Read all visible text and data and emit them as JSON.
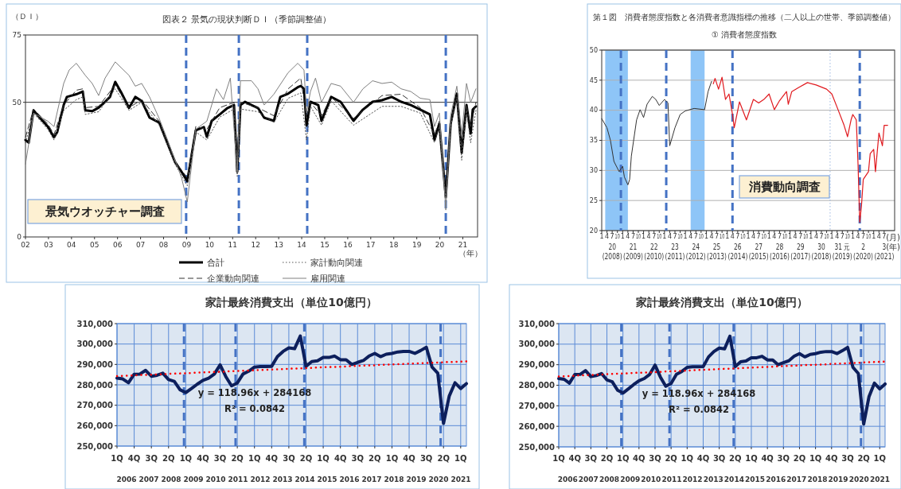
{
  "chart_data": [
    {
      "type": "line",
      "title": "図表２ 景気の現状判断ＤＩ（季節調整値）",
      "ylabel": "（ＤＩ）",
      "xlabel": "（年）",
      "xlim": [
        2002,
        2021.64
      ],
      "ylim": [
        0,
        75
      ],
      "yticks": [
        0,
        50,
        75
      ],
      "xticks": [
        {
          "value": 2002,
          "label": "02"
        },
        {
          "value": 2003,
          "label": "03"
        },
        {
          "value": 2004,
          "label": "04"
        },
        {
          "value": 2005,
          "label": "05"
        },
        {
          "value": 2006,
          "label": "06"
        },
        {
          "value": 2007,
          "label": "07"
        },
        {
          "value": 2008,
          "label": "08"
        },
        {
          "value": 2009,
          "label": "09"
        },
        {
          "value": 2010,
          "label": "10"
        },
        {
          "value": 2011,
          "label": "11"
        },
        {
          "value": 2012,
          "label": "12"
        },
        {
          "value": 2013,
          "label": "13"
        },
        {
          "value": 2014,
          "label": "14"
        },
        {
          "value": 2015,
          "label": "15"
        },
        {
          "value": 2016,
          "label": "16"
        },
        {
          "value": 2017,
          "label": "17"
        },
        {
          "value": 2018,
          "label": "18"
        },
        {
          "value": 2019,
          "label": "19"
        },
        {
          "value": 2020,
          "label": "20"
        },
        {
          "value": 2021,
          "label": "21"
        }
      ],
      "grid": false,
      "legend": "bottom",
      "ref_lines": [
        {
          "axis": "y",
          "value": 50,
          "color": "#333333",
          "line_style": "solid"
        },
        {
          "axis": "x",
          "value": 2008.98,
          "color": "#4472c4",
          "line_style": "dashed"
        },
        {
          "axis": "x",
          "value": 2011.27,
          "color": "#4472c4",
          "line_style": "dashed"
        },
        {
          "axis": "x",
          "value": 2014.24,
          "color": "#4472c4",
          "line_style": "dashed"
        },
        {
          "axis": "x",
          "value": 2020.26,
          "color": "#4472c4",
          "line_style": "dashed"
        }
      ],
      "annotations": [
        "景気ウオッチャー調査"
      ],
      "series": [
        {
          "name": "合計",
          "color": "#000000",
          "line_style": "solid",
          "x": [
            2002.0,
            2002.14,
            2002.35,
            2002.5,
            2002.97,
            2003.24,
            2003.38,
            2003.66,
            2003.8,
            2004.21,
            2004.49,
            2004.6,
            2004.9,
            2005.18,
            2005.46,
            2005.67,
            2005.9,
            2006.15,
            2006.5,
            2006.77,
            2007.05,
            2007.39,
            2007.81,
            2008.22,
            2008.5,
            2008.78,
            2009.03,
            2009.19,
            2009.4,
            2009.75,
            2009.88,
            2010.09,
            2010.44,
            2010.78,
            2011.06,
            2011.2,
            2011.34,
            2011.54,
            2011.82,
            2012.1,
            2012.37,
            2012.79,
            2013.07,
            2013.41,
            2013.83,
            2013.96,
            2014.1,
            2014.21,
            2014.38,
            2014.72,
            2014.86,
            2015.28,
            2015.69,
            2015.97,
            2016.25,
            2016.66,
            2017.08,
            2017.49,
            2017.91,
            2018.32,
            2018.74,
            2019.15,
            2019.57,
            2019.77,
            2019.98,
            2020.26,
            2020.47,
            2020.74,
            2020.95,
            2021.16,
            2021.34,
            2021.43,
            2021.57
          ],
          "values": [
            36,
            35,
            47,
            45.5,
            41,
            37,
            39,
            49,
            52,
            53,
            54,
            47,
            46.7,
            48,
            50.2,
            52,
            57.6,
            53.8,
            47.9,
            52,
            50.5,
            44.3,
            42.5,
            33.7,
            27.8,
            24.2,
            20.7,
            29,
            39.6,
            40.8,
            37.2,
            43.1,
            45.5,
            47.9,
            49,
            24.2,
            49,
            50.2,
            49,
            47.9,
            44.3,
            43.1,
            52,
            53.2,
            55.6,
            56.1,
            55,
            41.4,
            50.2,
            49,
            43.1,
            52,
            50.2,
            46.7,
            43.1,
            47.3,
            50.2,
            50.8,
            52,
            50.2,
            49,
            47.3,
            45.5,
            36.1,
            42,
            14.8,
            42,
            53.2,
            31.3,
            49,
            38.4,
            47.3,
            48.5
          ]
        },
        {
          "name": "家計動向関連",
          "color": "#555555",
          "line_style": "dotted",
          "x": [
            2002.0,
            2002.35,
            2002.97,
            2003.24,
            2003.66,
            2004.21,
            2004.49,
            2004.6,
            2005.18,
            2005.9,
            2006.5,
            2007.05,
            2007.81,
            2008.5,
            2009.03,
            2009.4,
            2009.88,
            2010.44,
            2011.06,
            2011.2,
            2011.34,
            2012.1,
            2012.79,
            2013.41,
            2013.96,
            2014.21,
            2014.38,
            2014.86,
            2015.28,
            2016.25,
            2017.49,
            2018.32,
            2019.15,
            2019.77,
            2019.98,
            2020.26,
            2020.47,
            2020.74,
            2020.95,
            2021.16,
            2021.34,
            2021.57
          ],
          "values": [
            35,
            46,
            40,
            36,
            47,
            51,
            52,
            45.5,
            46.5,
            55,
            47,
            50,
            41.5,
            27,
            19,
            39,
            36,
            44.5,
            47.5,
            22.5,
            47.5,
            46.5,
            42.5,
            51.5,
            53.5,
            36,
            48.5,
            41.5,
            50.5,
            41.5,
            48.5,
            48.5,
            46,
            35,
            41,
            13.5,
            41,
            52,
            28.5,
            47,
            35,
            47
          ]
        },
        {
          "name": "企業動向関連",
          "color": "#333333",
          "line_style": "dashed",
          "x": [
            2002.0,
            2002.35,
            2002.97,
            2003.24,
            2003.66,
            2004.21,
            2004.49,
            2004.6,
            2005.18,
            2005.9,
            2006.5,
            2007.05,
            2007.81,
            2008.5,
            2009.03,
            2009.4,
            2009.88,
            2010.44,
            2011.06,
            2011.2,
            2011.34,
            2012.1,
            2012.79,
            2013.41,
            2013.96,
            2014.21,
            2014.38,
            2014.86,
            2015.28,
            2016.25,
            2017.49,
            2018.32,
            2019.15,
            2019.77,
            2019.98,
            2020.26,
            2020.47,
            2020.74,
            2020.95,
            2021.16,
            2021.34,
            2021.57
          ],
          "values": [
            37,
            47.5,
            42,
            38,
            49,
            54.5,
            55,
            48,
            48.5,
            56.5,
            48,
            51,
            43,
            28,
            22,
            41,
            40,
            48,
            50,
            26,
            50,
            48,
            45,
            55,
            59,
            44,
            50,
            45,
            52,
            44,
            52.5,
            53,
            48,
            38,
            43,
            16,
            43,
            52,
            33,
            49,
            41,
            50
          ]
        },
        {
          "name": "雇用関連",
          "color": "#808080",
          "line_style": "solid",
          "x": [
            2002.0,
            2002.35,
            2002.97,
            2003.24,
            2003.66,
            2003.9,
            2004.21,
            2004.6,
            2004.9,
            2005.18,
            2005.46,
            2005.9,
            2006.5,
            2006.77,
            2007.05,
            2007.39,
            2007.81,
            2008.22,
            2008.78,
            2009.03,
            2009.4,
            2009.88,
            2010.3,
            2010.6,
            2010.9,
            2011.2,
            2011.34,
            2011.82,
            2012.1,
            2012.37,
            2012.79,
            2013.41,
            2013.83,
            2014.1,
            2014.21,
            2014.38,
            2014.6,
            2014.86,
            2015.28,
            2015.69,
            2016.25,
            2016.66,
            2017.08,
            2017.49,
            2017.91,
            2018.32,
            2018.74,
            2019.15,
            2019.57,
            2019.77,
            2019.98,
            2020.26,
            2020.47,
            2020.74,
            2020.95,
            2021.16,
            2021.34,
            2021.57
          ],
          "values": [
            27,
            46,
            43,
            41,
            57,
            62,
            64.5,
            60,
            57,
            52.5,
            59,
            65,
            60,
            56,
            57,
            52,
            44,
            35,
            22,
            13,
            40,
            43,
            55,
            51,
            59,
            24,
            58,
            58,
            55,
            49,
            53,
            61,
            64.5,
            62,
            46,
            54,
            59,
            50,
            57,
            56,
            50,
            55,
            58,
            57,
            57.5,
            55,
            54,
            51.5,
            51,
            41,
            46,
            10,
            45,
            56,
            38,
            57,
            50,
            55
          ]
        }
      ]
    },
    {
      "type": "line",
      "title": "第１図　消費者態度指数と各消費者意識指標の推移（二人以上の世帯、季節調整値）",
      "subtitle": "① 消費者態度指数",
      "xlabel": "(月)\n(年)",
      "xlim": [
        "2008-01",
        "2022-01"
      ],
      "ylim": [
        20,
        50
      ],
      "yticks": [
        20,
        25,
        30,
        35,
        40,
        45,
        50
      ],
      "xticks": [
        {
          "value": "2008-01",
          "label": "1"
        },
        {
          "value": "2008-04",
          "label": "4"
        },
        {
          "value": "2008-07",
          "label": "7"
        },
        {
          "value": "2008-10",
          "label": "10"
        },
        {
          "value": "2009-01",
          "label": "1"
        },
        {
          "value": "2009-04",
          "label": "4"
        },
        {
          "value": "2009-07",
          "label": "7"
        },
        {
          "value": "2009-10",
          "label": "10"
        },
        {
          "value": "2010-01",
          "label": "1"
        },
        {
          "value": "2010-04",
          "label": "4"
        },
        {
          "value": "2010-07",
          "label": "7"
        },
        {
          "value": "2010-10",
          "label": "10"
        },
        {
          "value": "2011-01",
          "label": "1"
        },
        {
          "value": "2011-04",
          "label": "4"
        },
        {
          "value": "2011-07",
          "label": "7"
        },
        {
          "value": "2011-10",
          "label": "10"
        },
        {
          "value": "2012-01",
          "label": "1"
        },
        {
          "value": "2012-04",
          "label": "4"
        },
        {
          "value": "2012-07",
          "label": "7"
        },
        {
          "value": "2012-10",
          "label": "10"
        },
        {
          "value": "2013-01",
          "label": "1"
        },
        {
          "value": "2013-04",
          "label": "4"
        },
        {
          "value": "2013-07",
          "label": "7"
        },
        {
          "value": "2013-10",
          "label": "10"
        },
        {
          "value": "2014-01",
          "label": "1"
        },
        {
          "value": "2014-04",
          "label": "4"
        },
        {
          "value": "2014-07",
          "label": "7"
        },
        {
          "value": "2014-10",
          "label": "10"
        },
        {
          "value": "2015-01",
          "label": "1"
        },
        {
          "value": "2015-04",
          "label": "4"
        },
        {
          "value": "2015-07",
          "label": "7"
        },
        {
          "value": "2015-10",
          "label": "10"
        },
        {
          "value": "2016-01",
          "label": "1"
        },
        {
          "value": "2016-04",
          "label": "4"
        },
        {
          "value": "2016-07",
          "label": "7"
        },
        {
          "value": "2016-10",
          "label": "10"
        },
        {
          "value": "2017-01",
          "label": "1"
        },
        {
          "value": "2017-04",
          "label": "4"
        },
        {
          "value": "2017-07",
          "label": "7"
        },
        {
          "value": "2017-10",
          "label": "10"
        },
        {
          "value": "2018-01",
          "label": "1"
        },
        {
          "value": "2018-04",
          "label": "4"
        },
        {
          "value": "2018-07",
          "label": "7"
        },
        {
          "value": "2018-10",
          "label": "10"
        },
        {
          "value": "2019-01",
          "label": "1"
        },
        {
          "value": "2019-04",
          "label": "4"
        },
        {
          "value": "2019-07",
          "label": "7"
        },
        {
          "value": "2019-10",
          "label": "10"
        },
        {
          "value": "2020-01",
          "label": "1"
        },
        {
          "value": "2020-04",
          "label": "4"
        },
        {
          "value": "2020-07",
          "label": "7"
        },
        {
          "value": "2020-10",
          "label": "10"
        },
        {
          "value": "2021-01",
          "label": "1"
        },
        {
          "value": "2021-04",
          "label": "4"
        },
        {
          "value": "2021-07",
          "label": "7"
        }
      ],
      "x2lim": [
        "2008-01",
        "2022-01"
      ],
      "x2ticks": [
        {
          "value": "2008-07",
          "label": "20\n(2008)"
        },
        {
          "value": "2009-07",
          "label": "21\n(2009)"
        },
        {
          "value": "2010-07",
          "label": "22\n(2010)"
        },
        {
          "value": "2011-07",
          "label": "23\n(2011)"
        },
        {
          "value": "2012-07",
          "label": "24\n(2012)"
        },
        {
          "value": "2013-07",
          "label": "25\n(2013)"
        },
        {
          "value": "2014-07",
          "label": "26\n(2014)"
        },
        {
          "value": "2015-07",
          "label": "27\n(2015)"
        },
        {
          "value": "2016-07",
          "label": "28\n(2016)"
        },
        {
          "value": "2017-07",
          "label": "29\n(2017)"
        },
        {
          "value": "2018-07",
          "label": "30\n(2018)"
        },
        {
          "value": "2019-07",
          "label": "31 元\n(2019)"
        },
        {
          "value": "2020-07",
          "label": "2\n(2020)"
        },
        {
          "value": "2021-07",
          "label": "3\n(2021)"
        }
      ],
      "grid": "y",
      "bands": [
        {
          "axis": "x",
          "from": "2008-03",
          "to": "2009-04",
          "color": "#8ec5f7"
        },
        {
          "axis": "x",
          "from": "2012-04",
          "to": "2012-12",
          "color": "#8ec5f7"
        }
      ],
      "ref_lines": [
        {
          "axis": "x",
          "value": "2018-12",
          "color": "#9bb7e0",
          "line_style": "dotted"
        },
        {
          "axis": "x",
          "value": "2008-12",
          "color": "#4472c4",
          "line_style": "dashed"
        },
        {
          "axis": "x",
          "value": "2011-02",
          "color": "#4472c4",
          "line_style": "dashed"
        },
        {
          "axis": "x",
          "value": "2014-04",
          "color": "#4472c4",
          "line_style": "dashed"
        },
        {
          "axis": "x",
          "value": "2020-05",
          "color": "#4472c4",
          "line_style": "dashed"
        }
      ],
      "annotations": [
        "消費動向調査"
      ],
      "series": [
        {
          "color": "#333333",
          "x": [
            "2008-01",
            "2008-04",
            "2008-06",
            "2008-08",
            "2008-11",
            "2009-01",
            "2009-02",
            "2009-04",
            "2009-05",
            "2009-06",
            "2009-09",
            "2009-11",
            "2010-01",
            "2010-03",
            "2010-06",
            "2010-08",
            "2010-10",
            "2011-01",
            "2011-03",
            "2011-04",
            "2011-07",
            "2011-10",
            "2012-01",
            "2012-06",
            "2012-12",
            "2013-02",
            "2013-04"
          ],
          "values": [
            38.6,
            37.1,
            35.0,
            31.5,
            29.8,
            30.7,
            28.9,
            27.6,
            28.5,
            32.4,
            38.4,
            40.1,
            38.8,
            41.0,
            42.3,
            41.8,
            40.8,
            41.8,
            41.2,
            34.1,
            37.1,
            39.3,
            39.9,
            40.3,
            40.1,
            43.1,
            44.8
          ]
        },
        {
          "color": "#e0191e",
          "x": [
            "2013-05",
            "2013-06",
            "2013-08",
            "2013-10",
            "2013-12",
            "2014-02",
            "2014-04",
            "2014-05",
            "2014-08",
            "2014-12",
            "2015-04",
            "2015-07",
            "2015-10",
            "2016-01",
            "2016-04",
            "2016-07",
            "2016-11",
            "2016-12",
            "2017-02",
            "2017-06",
            "2017-11",
            "2018-04",
            "2018-10",
            "2019-01",
            "2019-04",
            "2019-08",
            "2019-10",
            "2019-12",
            "2020-01",
            "2020-03",
            "2020-04",
            "2020-05",
            "2020-06",
            "2020-07",
            "2020-10",
            "2020-11",
            "2021-01",
            "2021-02",
            "2021-04",
            "2021-06",
            "2021-07",
            "2021-09"
          ],
          "values": [
            44.4,
            45.3,
            43.5,
            45.5,
            41.8,
            42.7,
            39.3,
            37.1,
            41.4,
            38.4,
            41.8,
            41.2,
            41.8,
            42.7,
            40.1,
            41.6,
            43.1,
            41.0,
            43.1,
            43.8,
            44.6,
            44.2,
            43.5,
            42.7,
            40.5,
            37.5,
            35.6,
            38.4,
            39.3,
            38.4,
            31.1,
            21.4,
            24.2,
            28.5,
            29.8,
            32.8,
            33.5,
            29.8,
            36.2,
            34.1,
            37.5,
            37.5
          ]
        }
      ]
    },
    {
      "type": "line",
      "title": "家計最終消費支出（単位10億円）",
      "ylim": [
        250000,
        310000
      ],
      "categories": [
        "1Q",
        null,
        null,
        "4Q",
        null,
        null,
        "3Q",
        null,
        null,
        "2Q",
        null,
        null,
        "1Q",
        null,
        null,
        "4Q",
        null,
        null,
        "3Q",
        null,
        null,
        "2Q",
        null,
        null,
        "1Q",
        null,
        null,
        "4Q",
        null,
        null,
        "3Q",
        null,
        null,
        "2Q",
        null,
        null,
        "1Q",
        null,
        null,
        "4Q",
        null,
        null,
        "3Q",
        null,
        null,
        "2Q",
        null,
        null,
        "1Q",
        null,
        null,
        "4Q",
        null,
        null,
        "3Q",
        null,
        null,
        "2Q",
        null,
        null,
        "1Q",
        null
      ],
      "yticks": [
        {
          "value": 250000,
          "label": "250,000"
        },
        {
          "value": 260000,
          "label": "260,000"
        },
        {
          "value": 270000,
          "label": "270,000"
        },
        {
          "value": 280000,
          "label": "280,000"
        },
        {
          "value": 290000,
          "label": "290,000"
        },
        {
          "value": 300000,
          "label": "300,000"
        },
        {
          "value": 310000,
          "label": "310,000"
        }
      ],
      "grid": true,
      "annotations": [
        "y = 118.96x + 284168",
        "R² = 0.0842",
        "2006",
        "2007",
        "2008",
        "2009",
        "2010",
        "2011",
        "2012",
        "2013",
        "2014",
        "2015",
        "2016",
        "2017",
        "2018",
        "2019",
        "2020",
        "2021"
      ],
      "series": [
        {
          "color": "#0d1f5c",
          "line_style": "solid",
          "values": [
            283300,
            282900,
            281000,
            285200,
            285300,
            287100,
            284200,
            284700,
            285700,
            282600,
            281700,
            277600,
            276200,
            278200,
            280300,
            282200,
            283300,
            285300,
            289800,
            284000,
            279500,
            280900,
            285300,
            286700,
            288700,
            289000,
            289000,
            289100,
            293800,
            296400,
            298100,
            297700,
            303900,
            289100,
            291400,
            291800,
            293400,
            293400,
            294100,
            292300,
            292300,
            290000,
            291000,
            291900,
            294100,
            295400,
            293800,
            295000,
            295400,
            296100,
            296400,
            296400,
            295400,
            296800,
            298400,
            288700,
            285700,
            261100,
            274500,
            281000,
            278200,
            280600
          ]
        },
        {
          "type": "line",
          "color": "#ff0000",
          "line_style": "dotted",
          "values": [
            284300,
            284400,
            284500,
            284600,
            284800,
            284900,
            285000,
            285100,
            285200,
            285400,
            285500,
            285600,
            285700,
            285800,
            286000,
            286100,
            286200,
            286300,
            286400,
            286500,
            286700,
            286800,
            286900,
            287000,
            287100,
            287300,
            287400,
            287500,
            287600,
            287700,
            287900,
            288000,
            288100,
            288200,
            288300,
            288500,
            288600,
            288700,
            288800,
            288900,
            289000,
            289200,
            289300,
            289400,
            289500,
            289600,
            289800,
            289900,
            290000,
            290100,
            290200,
            290400,
            290500,
            290600,
            290700,
            290800,
            290900,
            291100,
            291200,
            291300,
            291400,
            291500
          ]
        }
      ]
    },
    {
      "type": "line",
      "title": "家計最終消費支出（単位10億円）",
      "ylim": [
        250000,
        310000
      ],
      "categories": [
        "1Q",
        null,
        null,
        "4Q",
        null,
        null,
        "3Q",
        null,
        null,
        "2Q",
        null,
        null,
        "1Q",
        null,
        null,
        "4Q",
        null,
        null,
        "3Q",
        null,
        null,
        "2Q",
        null,
        null,
        "1Q",
        null,
        null,
        "4Q",
        null,
        null,
        "3Q",
        null,
        null,
        "2Q",
        null,
        null,
        "1Q",
        null,
        null,
        "4Q",
        null,
        null,
        "3Q",
        null,
        null,
        "2Q",
        null,
        null,
        "1Q",
        null,
        null,
        "4Q",
        null,
        null,
        "3Q",
        null,
        null,
        "2Q",
        null,
        null,
        "1Q",
        null
      ],
      "yticks": [
        {
          "value": 250000,
          "label": "250,000"
        },
        {
          "value": 260000,
          "label": "260,000"
        },
        {
          "value": 270000,
          "label": "270,000"
        },
        {
          "value": 280000,
          "label": "280,000"
        },
        {
          "value": 290000,
          "label": "290,000"
        },
        {
          "value": 300000,
          "label": "300,000"
        },
        {
          "value": 310000,
          "label": "310,000"
        }
      ],
      "grid": true,
      "annotations": [
        "y = 118.96x + 284168",
        "R² = 0.0842",
        "2006",
        "2007",
        "2008",
        "2009",
        "2010",
        "2011",
        "2012",
        "2013",
        "2014",
        "2015",
        "2016",
        "2017",
        "2018",
        "2019",
        "2020",
        "2021"
      ],
      "series": [
        {
          "color": "#0d1f5c",
          "line_style": "solid",
          "values": [
            283300,
            282900,
            281000,
            285200,
            285300,
            287100,
            284200,
            284700,
            285700,
            282600,
            281700,
            277600,
            276200,
            278200,
            280300,
            282200,
            283300,
            285300,
            289800,
            284000,
            279500,
            280900,
            285300,
            286700,
            288700,
            289000,
            289000,
            289100,
            293800,
            296400,
            298100,
            297700,
            303900,
            289100,
            291400,
            291800,
            293400,
            293400,
            294100,
            292300,
            292300,
            290000,
            291000,
            291900,
            294100,
            295400,
            293800,
            295000,
            295400,
            296100,
            296400,
            296400,
            295400,
            296800,
            298400,
            288700,
            285700,
            261100,
            274500,
            281000,
            278200,
            280600
          ]
        },
        {
          "type": "line",
          "color": "#ff0000",
          "line_style": "dotted",
          "values": [
            284300,
            284400,
            284500,
            284600,
            284800,
            284900,
            285000,
            285100,
            285200,
            285400,
            285500,
            285600,
            285700,
            285800,
            286000,
            286100,
            286200,
            286300,
            286400,
            286500,
            286700,
            286800,
            286900,
            287000,
            287100,
            287300,
            287400,
            287500,
            287600,
            287700,
            287900,
            288000,
            288100,
            288200,
            288300,
            288500,
            288600,
            288700,
            288800,
            288900,
            289000,
            289200,
            289300,
            289400,
            289500,
            289600,
            289800,
            289900,
            290000,
            290100,
            290200,
            290400,
            290500,
            290600,
            290700,
            290800,
            290900,
            291100,
            291200,
            291300,
            291400,
            291500
          ]
        }
      ]
    }
  ]
}
